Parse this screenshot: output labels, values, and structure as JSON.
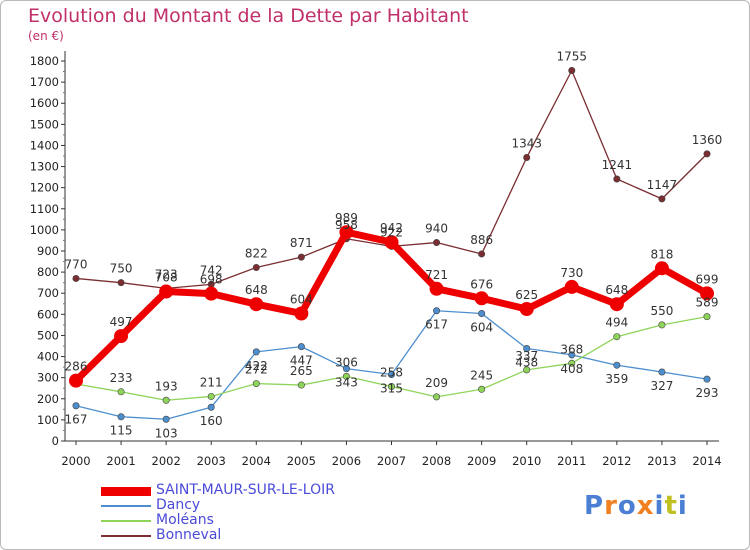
{
  "header": {
    "title": "Evolution du Montant de la Dette par Habitant",
    "unit": "(en €)"
  },
  "logo": {
    "text": "Proxiti",
    "colors": [
      "#4a7fd4",
      "#f08020",
      "#4a7fd4",
      "#f08020",
      "#4a7fd4",
      "#c0c020",
      "#4a7fd4"
    ]
  },
  "chart_data": {
    "type": "line",
    "title": "Evolution du Montant de la Dette par Habitant",
    "ylabel": "(en €)",
    "xlabel": "",
    "ylim": [
      0,
      1800
    ],
    "ytick_step": 100,
    "grid": false,
    "legend_position": "bottom-left",
    "categories": [
      "2000",
      "2001",
      "2002",
      "2003",
      "2004",
      "2005",
      "2006",
      "2007",
      "2008",
      "2009",
      "2010",
      "2011",
      "2012",
      "2013",
      "2014"
    ],
    "series": [
      {
        "name": "SAINT-MAUR-SUR-LE-LOIR",
        "color": "#ee0000",
        "highlight": true,
        "values": [
          286,
          497,
          708,
          698,
          648,
          604,
          989,
          942,
          721,
          676,
          625,
          730,
          648,
          818,
          699
        ]
      },
      {
        "name": "Dancy",
        "color": "#4d8fce",
        "highlight": false,
        "values": [
          167,
          115,
          103,
          160,
          422,
          447,
          343,
          315,
          617,
          604,
          438,
          408,
          359,
          327,
          293
        ]
      },
      {
        "name": "Moléans",
        "color": "#8fd45a",
        "highlight": false,
        "values": [
          270,
          233,
          193,
          211,
          272,
          265,
          306,
          258,
          209,
          245,
          337,
          368,
          494,
          550,
          589
        ]
      },
      {
        "name": "Bonneval",
        "color": "#7a2e32",
        "highlight": false,
        "values": [
          770,
          750,
          723,
          742,
          822,
          871,
          958,
          922,
          940,
          886,
          1343,
          1755,
          1241,
          1147,
          1360
        ]
      }
    ],
    "data_labels": [
      [
        "286",
        "497",
        "708",
        "698",
        "648",
        "604",
        "989",
        "942",
        "721",
        "676",
        "625",
        "730",
        "648",
        "818",
        "699"
      ],
      [
        "167",
        "115",
        "103",
        "160",
        "422",
        "447",
        "343",
        "315",
        "617",
        "604",
        "438",
        "408",
        "359",
        "327",
        "293"
      ],
      [
        "",
        "233",
        "193",
        "211",
        "272",
        "265",
        "306",
        "258",
        "209",
        "245",
        "337",
        "368",
        "494",
        "550",
        "589"
      ],
      [
        "770",
        "750",
        "723",
        "742",
        "822",
        "871",
        "958",
        "922",
        "940",
        "886",
        "1343",
        "1755",
        "1241",
        "1147",
        "1360"
      ]
    ]
  }
}
